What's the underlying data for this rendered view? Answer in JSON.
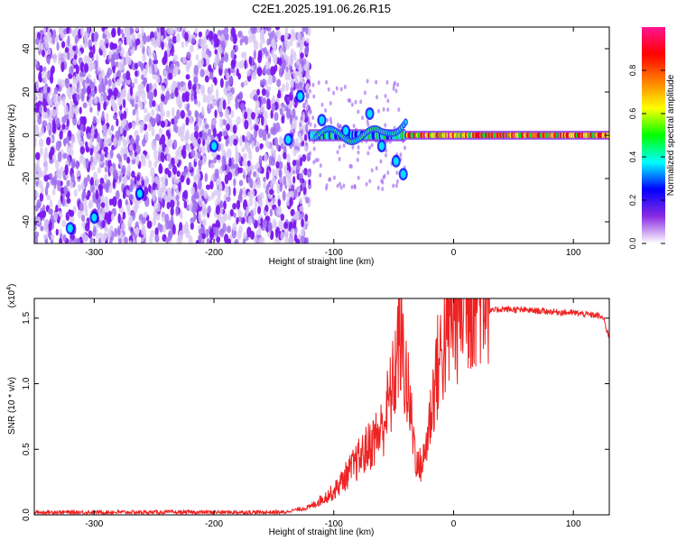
{
  "title": "C2E1.2025.191.06.26.R15",
  "chart_data": [
    {
      "type": "heatmap",
      "xlabel": "Height of straight line (km)",
      "ylabel": "Frequency (Hz)",
      "xlim": [
        -350,
        130
      ],
      "ylim": [
        -50,
        50
      ],
      "xticks": [
        -300,
        -200,
        -100,
        0,
        100
      ],
      "yticks": [
        -40,
        -20,
        0,
        20,
        40
      ],
      "colorbar": {
        "label": "Normalized spectral amplitude",
        "range": [
          0,
          1
        ],
        "ticks": [
          "0.0",
          "0.2",
          "0.4",
          "0.6",
          "0.8"
        ],
        "colors": [
          "#ffffff",
          "#8a2be2",
          "#0000ff",
          "#00ffff",
          "#00ff00",
          "#ffff00",
          "#ff7f00",
          "#ff0000",
          "#ff1493"
        ]
      },
      "features": {
        "noise_region_x": [
          -350,
          -120
        ],
        "carrier_line_y": 0,
        "carrier_strong_from_x": -40,
        "branch_points": [
          {
            "x": -128,
            "y": 18
          },
          {
            "x": -110,
            "y": 7
          },
          {
            "x": -90,
            "y": 2
          },
          {
            "x": -70,
            "y": 10
          },
          {
            "x": -60,
            "y": -5
          },
          {
            "x": -48,
            "y": -12
          },
          {
            "x": -42,
            "y": -18
          },
          {
            "x": -320,
            "y": -43
          },
          {
            "x": -300,
            "y": -38
          },
          {
            "x": -262,
            "y": -27
          },
          {
            "x": -200,
            "y": -5
          },
          {
            "x": -138,
            "y": -2
          }
        ]
      }
    },
    {
      "type": "line",
      "xlabel": "Height of straight line (km)",
      "ylabel": "SNR (10 * v/v)",
      "yscale_label": "(x10",
      "yscale_exp": "4",
      "yscale_close": ")",
      "xlim": [
        -350,
        130
      ],
      "ylim": [
        0,
        1.65
      ],
      "xticks": [
        -300,
        -200,
        -100,
        0,
        100
      ],
      "yticks": [
        "0.0",
        "0.5",
        "1.0",
        "1.5"
      ],
      "ytick_values": [
        0,
        0.5,
        1.0,
        1.5
      ],
      "series": [
        {
          "color": "#ee2222",
          "envelope_x": [
            -350,
            -140,
            -120,
            -100,
            -80,
            -60,
            -50,
            -45,
            -40,
            -35,
            -30,
            -25,
            -20,
            -15,
            -10,
            -5,
            0,
            5,
            10,
            15,
            20,
            30,
            40,
            60,
            80,
            100,
            110,
            120,
            125,
            130
          ],
          "envelope_y": [
            0.02,
            0.02,
            0.05,
            0.15,
            0.35,
            0.55,
            0.85,
            1.2,
            0.9,
            0.6,
            0.3,
            0.35,
            0.6,
            0.9,
            1.05,
            1.2,
            1.3,
            1.35,
            1.42,
            1.45,
            1.5,
            1.55,
            1.57,
            1.56,
            1.55,
            1.54,
            1.53,
            1.52,
            1.5,
            1.35
          ]
        }
      ]
    }
  ]
}
